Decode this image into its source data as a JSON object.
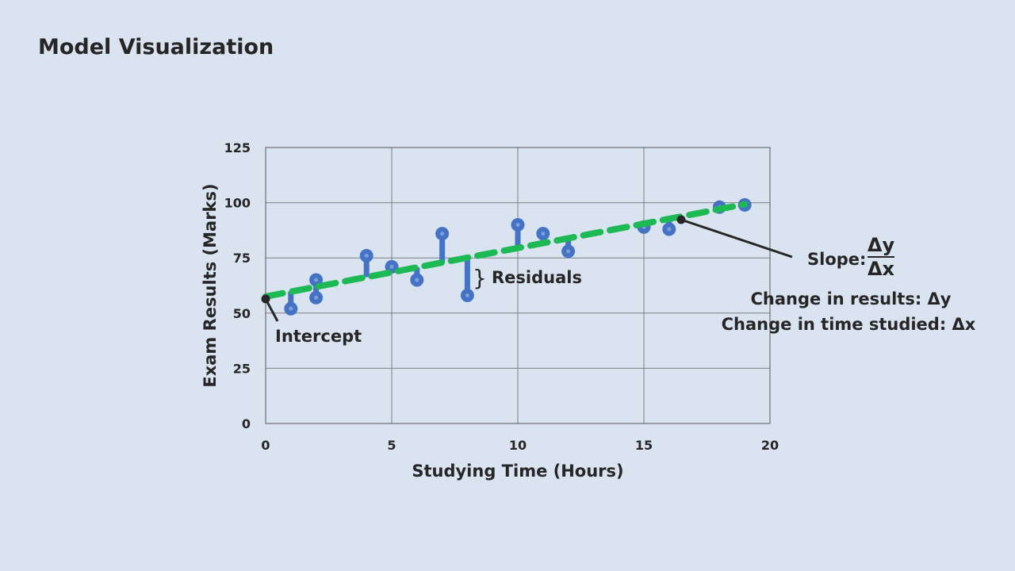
{
  "slide": {
    "title": "Model Visualization"
  },
  "colors": {
    "background": "#dae3f0",
    "points": "#4472c4",
    "regression": "#1db954",
    "residuals": "#4472c4",
    "annotation": "#262626"
  },
  "chart_data": {
    "type": "scatter",
    "title": "",
    "xlabel": "Studying Time (Hours)",
    "ylabel": "Exam Results (Marks)",
    "xlim": [
      0,
      20
    ],
    "ylim": [
      0,
      125
    ],
    "xticks": [
      0,
      5,
      10,
      15,
      20
    ],
    "yticks": [
      0,
      25,
      50,
      75,
      100,
      125
    ],
    "grid": true,
    "points": [
      {
        "x": 1,
        "y": 52
      },
      {
        "x": 2,
        "y": 65
      },
      {
        "x": 2,
        "y": 57
      },
      {
        "x": 4,
        "y": 76
      },
      {
        "x": 5,
        "y": 71
      },
      {
        "x": 6,
        "y": 65
      },
      {
        "x": 7,
        "y": 86
      },
      {
        "x": 8,
        "y": 58
      },
      {
        "x": 10,
        "y": 90
      },
      {
        "x": 11,
        "y": 86
      },
      {
        "x": 12,
        "y": 78
      },
      {
        "x": 15,
        "y": 89
      },
      {
        "x": 16,
        "y": 88
      },
      {
        "x": 18,
        "y": 98
      },
      {
        "x": 19,
        "y": 99
      }
    ],
    "regression": {
      "intercept": 57.5,
      "slope": 2.2,
      "x_range": [
        0,
        19
      ]
    },
    "annotations": {
      "intercept": "Intercept",
      "residuals": "Residuals",
      "residual_bracket": "}",
      "slope_label": "Slope:",
      "slope_numerator": "Δy",
      "slope_denominator": "Δx",
      "change_results": "Change in results: Δy",
      "change_time": "Change in time studied: Δx"
    }
  }
}
